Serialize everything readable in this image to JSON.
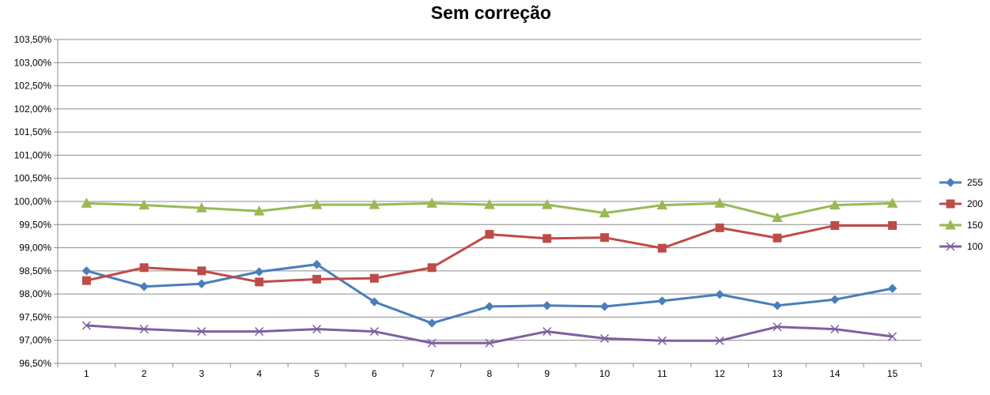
{
  "chart_data": {
    "type": "line",
    "title": "Sem correção",
    "xlabel": "",
    "ylabel": "",
    "categories": [
      "1",
      "2",
      "3",
      "4",
      "5",
      "6",
      "7",
      "8",
      "9",
      "10",
      "11",
      "12",
      "13",
      "14",
      "15"
    ],
    "y_ticks": [
      "96,50%",
      "97,00%",
      "97,50%",
      "98,00%",
      "98,50%",
      "99,00%",
      "99,50%",
      "100,00%",
      "100,50%",
      "101,00%",
      "101,50%",
      "102,00%",
      "102,50%",
      "103,00%",
      "103,50%"
    ],
    "ylim": [
      96.5,
      103.5
    ],
    "y_step": 0.5,
    "grid": true,
    "legend_position": "right",
    "series": [
      {
        "name": "255",
        "color": "#4a7ebb",
        "marker": "diamond",
        "values": [
          98.5,
          98.16,
          98.22,
          98.48,
          98.64,
          97.83,
          97.37,
          97.73,
          97.75,
          97.73,
          97.85,
          97.99,
          97.75,
          97.88,
          98.12
        ]
      },
      {
        "name": "200",
        "color": "#be4b48",
        "marker": "square",
        "values": [
          98.29,
          98.57,
          98.5,
          98.26,
          98.32,
          98.34,
          98.57,
          99.29,
          99.2,
          99.22,
          98.99,
          99.43,
          99.21,
          99.48,
          99.48
        ]
      },
      {
        "name": "150",
        "color": "#98b954",
        "marker": "triangle",
        "values": [
          99.96,
          99.92,
          99.86,
          99.79,
          99.93,
          99.93,
          99.96,
          99.93,
          99.93,
          99.75,
          99.92,
          99.96,
          99.65,
          99.92,
          99.96
        ]
      },
      {
        "name": "100",
        "color": "#7d60a0",
        "marker": "x",
        "values": [
          97.32,
          97.24,
          97.19,
          97.19,
          97.24,
          97.19,
          96.94,
          96.94,
          97.19,
          97.04,
          96.99,
          96.99,
          97.29,
          97.24,
          97.08
        ]
      }
    ]
  }
}
